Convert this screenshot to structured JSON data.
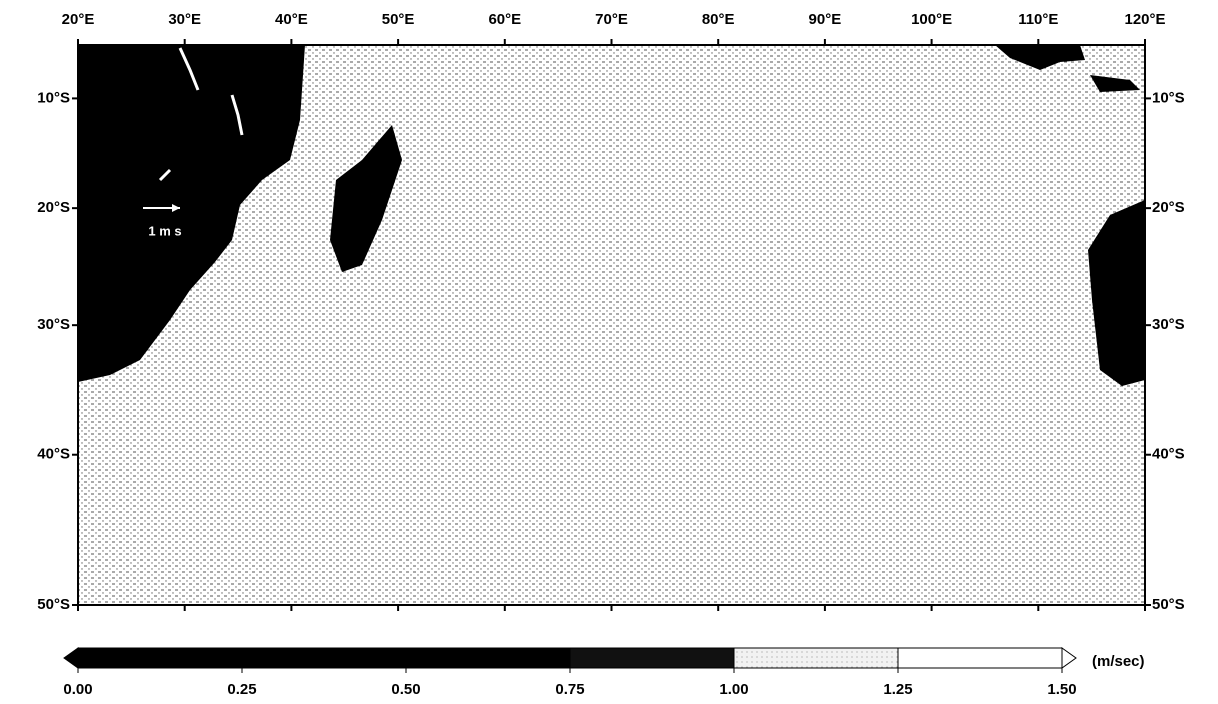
{
  "map": {
    "lonlim": [
      20,
      120
    ],
    "latlim": [
      -50,
      -5
    ],
    "lon_ticks": [
      {
        "value": 20,
        "label": "20°E"
      },
      {
        "value": 30,
        "label": "30°E"
      },
      {
        "value": 40,
        "label": "40°E"
      },
      {
        "value": 50,
        "label": "50°E"
      },
      {
        "value": 60,
        "label": "60°E"
      },
      {
        "value": 70,
        "label": "70°E"
      },
      {
        "value": 80,
        "label": "80°E"
      },
      {
        "value": 90,
        "label": "90°E"
      },
      {
        "value": 100,
        "label": "100°E"
      },
      {
        "value": 110,
        "label": "110°E"
      },
      {
        "value": 120,
        "label": "120°E"
      }
    ],
    "lat_ticks": [
      {
        "value": -10,
        "label": "10°S"
      },
      {
        "value": -20,
        "label": "20°S"
      },
      {
        "value": -30,
        "label": "30°S"
      },
      {
        "value": -40,
        "label": "40°S"
      },
      {
        "value": -50,
        "label": "50°S"
      }
    ],
    "land_color": "#000000",
    "reference_arrow": {
      "label": "1 m s"
    },
    "colorbar": {
      "ticks": [
        {
          "value": 0,
          "label": "0.00"
        },
        {
          "value": 0.25,
          "label": "0.25"
        },
        {
          "value": 0.5,
          "label": "0.50"
        },
        {
          "value": 0.75,
          "label": "0.75"
        },
        {
          "value": 1,
          "label": "1.00"
        },
        {
          "value": 1.25,
          "label": "1.25"
        },
        {
          "value": 1.5,
          "label": "1.50"
        }
      ],
      "colors": [
        "#000000",
        "#000000",
        "#000000",
        "#111111",
        "#ececec",
        "#ffffff"
      ],
      "unit": "(m/sec)"
    }
  }
}
